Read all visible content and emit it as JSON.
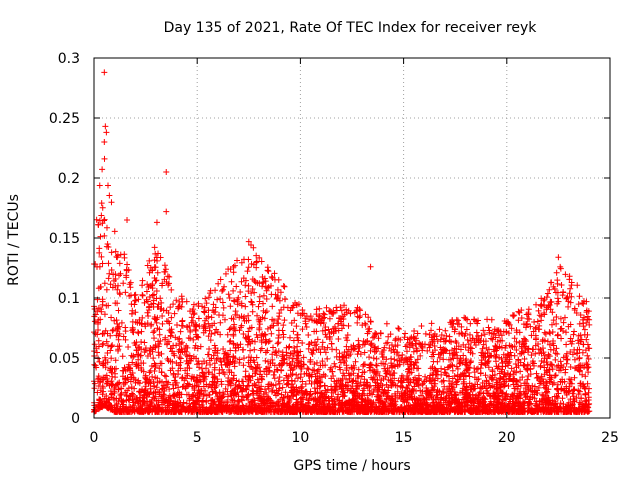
{
  "chart_data": {
    "type": "scatter",
    "title": "Day 135 of 2021, Rate Of TEC Index for receiver reyk",
    "xlabel": "GPS time / hours",
    "ylabel": "ROTI / TECUs",
    "xlim": [
      0,
      25
    ],
    "ylim": [
      0,
      0.3
    ],
    "xticks": [
      0,
      5,
      10,
      15,
      20,
      25
    ],
    "xtick_labels": [
      "0",
      "5",
      "10",
      "15",
      "20",
      "25"
    ],
    "yticks": [
      0,
      0.05,
      0.1,
      0.15,
      0.2,
      0.25,
      0.3
    ],
    "ytick_labels": [
      "0",
      "0.05",
      "0.1",
      "0.15",
      "0.2",
      "0.25",
      "0.3"
    ],
    "grid": true,
    "marker": "+",
    "color": "#ff0000",
    "series": [
      {
        "name": "ROTI",
        "x_range": [
          0,
          24
        ],
        "typical_envelope": [
          {
            "x": 0.0,
            "y_low": 0.005,
            "y_high": 0.15
          },
          {
            "x": 0.5,
            "y_low": 0.01,
            "y_high": 0.22
          },
          {
            "x": 1.0,
            "y_low": 0.005,
            "y_high": 0.16
          },
          {
            "x": 2.0,
            "y_low": 0.005,
            "y_high": 0.1
          },
          {
            "x": 3.0,
            "y_low": 0.005,
            "y_high": 0.14
          },
          {
            "x": 4.0,
            "y_low": 0.005,
            "y_high": 0.1
          },
          {
            "x": 5.0,
            "y_low": 0.005,
            "y_high": 0.09
          },
          {
            "x": 7.5,
            "y_low": 0.005,
            "y_high": 0.14
          },
          {
            "x": 10.0,
            "y_low": 0.005,
            "y_high": 0.09
          },
          {
            "x": 12.5,
            "y_low": 0.005,
            "y_high": 0.09
          },
          {
            "x": 15.0,
            "y_low": 0.005,
            "y_high": 0.07
          },
          {
            "x": 17.5,
            "y_low": 0.005,
            "y_high": 0.08
          },
          {
            "x": 20.0,
            "y_low": 0.005,
            "y_high": 0.08
          },
          {
            "x": 22.0,
            "y_low": 0.005,
            "y_high": 0.1
          },
          {
            "x": 22.5,
            "y_low": 0.005,
            "y_high": 0.13
          },
          {
            "x": 24.0,
            "y_low": 0.005,
            "y_high": 0.09
          }
        ],
        "outliers": [
          {
            "x": 0.5,
            "y": 0.288
          },
          {
            "x": 0.55,
            "y": 0.243
          },
          {
            "x": 0.6,
            "y": 0.238
          },
          {
            "x": 0.5,
            "y": 0.23
          },
          {
            "x": 3.5,
            "y": 0.205
          },
          {
            "x": 3.5,
            "y": 0.172
          },
          {
            "x": 1.6,
            "y": 0.165
          },
          {
            "x": 3.05,
            "y": 0.163
          },
          {
            "x": 13.4,
            "y": 0.126
          },
          {
            "x": 7.5,
            "y": 0.147
          },
          {
            "x": 22.5,
            "y": 0.134
          }
        ]
      }
    ]
  }
}
